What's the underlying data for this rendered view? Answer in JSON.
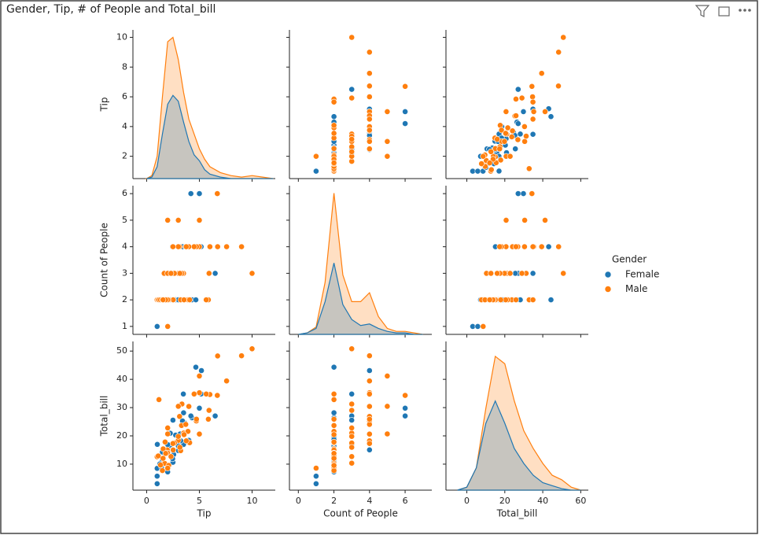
{
  "chart_data": {
    "type": "pairplot",
    "title": "Gender, Tip, # of People and Total_bill",
    "legend_title": "Gender",
    "kde_lim": [
      0,
      1
    ],
    "variables": [
      {
        "name": "Tip",
        "xlim": [
          -1.3,
          12.2
        ],
        "xticks": [
          0,
          5,
          10
        ],
        "ylim": [
          0.5,
          10.5
        ],
        "yticks": [
          2,
          4,
          6,
          8,
          10
        ],
        "kde_x": [
          0,
          0.5,
          1,
          1.5,
          2,
          2.5,
          3,
          3.5,
          4,
          4.5,
          5,
          5.5,
          6,
          7,
          8,
          9,
          10,
          11,
          12
        ]
      },
      {
        "name": "Count of People",
        "xlim": [
          -0.5,
          7.5
        ],
        "xticks": [
          0,
          2,
          4,
          6
        ],
        "ylim": [
          0.7,
          6.3
        ],
        "yticks": [
          1,
          2,
          3,
          4,
          5,
          6
        ],
        "kde_x": [
          0,
          0.5,
          1,
          1.5,
          2,
          2.5,
          3,
          3.5,
          4,
          4.5,
          5,
          5.5,
          6,
          6.5,
          7
        ]
      },
      {
        "name": "Total_bill",
        "xlim": [
          -11,
          64
        ],
        "xticks": [
          0,
          20,
          40,
          60
        ],
        "ylim": [
          0.8,
          53.4
        ],
        "yticks": [
          10,
          20,
          30,
          40,
          50
        ],
        "kde_x": [
          -5,
          0,
          5,
          10,
          15,
          20,
          25,
          30,
          35,
          40,
          45,
          50,
          55,
          60
        ]
      }
    ],
    "series": [
      {
        "name": "Female",
        "color": "#1f77b4",
        "points": [
          [
            1.01,
            2,
            16.99
          ],
          [
            3.61,
            4,
            24.59
          ],
          [
            5.0,
            4,
            35.26
          ],
          [
            3.02,
            2,
            14.78
          ],
          [
            1.67,
            3,
            10.33
          ],
          [
            3.5,
            3,
            16.97
          ],
          [
            2.75,
            2,
            20.29
          ],
          [
            2.23,
            2,
            15.77
          ],
          [
            3.0,
            2,
            19.65
          ],
          [
            2.45,
            4,
            15.06
          ],
          [
            3.18,
            2,
            20.69
          ],
          [
            2.0,
            2,
            16.93
          ],
          [
            4.3,
            2,
            26.41
          ],
          [
            3.0,
            2,
            16.45
          ],
          [
            1.0,
            1,
            3.07
          ],
          [
            2.5,
            2,
            10.65
          ],
          [
            3.23,
            2,
            18.29
          ],
          [
            1.5,
            2,
            11.17
          ],
          [
            1.0,
            1,
            8.52
          ],
          [
            4.0,
            2,
            18.43
          ],
          [
            3.5,
            2,
            28.17
          ],
          [
            6.5,
            3,
            27.05
          ],
          [
            5.2,
            4,
            43.11
          ],
          [
            4.2,
            6,
            27.05
          ],
          [
            5.0,
            6,
            29.8
          ],
          [
            2.0,
            2,
            7.25
          ],
          [
            2.5,
            3,
            25.56
          ],
          [
            1.44,
            2,
            8.51
          ],
          [
            1.25,
            2,
            10.07
          ],
          [
            3.0,
            2,
            18.78
          ],
          [
            4.67,
            2,
            44.3
          ],
          [
            2.56,
            2,
            13.42
          ],
          [
            1.5,
            2,
            14.26
          ],
          [
            3.48,
            3,
            34.81
          ],
          [
            2.0,
            3,
            22.75
          ],
          [
            2.24,
            3,
            20.92
          ],
          [
            5.17,
            4,
            34.83
          ],
          [
            1.0,
            1,
            5.75
          ],
          [
            3.4,
            4,
            25.29
          ],
          [
            2.47,
            2,
            11.87
          ]
        ],
        "kde": [
          [
            0,
            0.01,
            0.08,
            0.3,
            0.5,
            0.56,
            0.52,
            0.38,
            0.25,
            0.16,
            0.12,
            0.06,
            0.03,
            0.01,
            0,
            0,
            0,
            0,
            0
          ],
          [
            0,
            0.01,
            0.04,
            0.22,
            0.48,
            0.2,
            0.1,
            0.06,
            0.07,
            0.04,
            0.02,
            0.01,
            0.01,
            0,
            0
          ],
          [
            0,
            0.02,
            0.15,
            0.45,
            0.6,
            0.45,
            0.28,
            0.18,
            0.1,
            0.05,
            0.03,
            0.01,
            0,
            0
          ]
        ]
      },
      {
        "name": "Male",
        "color": "#ff7f0e",
        "points": [
          [
            1.66,
            3,
            10.34
          ],
          [
            3.5,
            3,
            21.01
          ],
          [
            3.31,
            2,
            23.68
          ],
          [
            4.71,
            4,
            25.29
          ],
          [
            2.0,
            2,
            8.77
          ],
          [
            3.12,
            4,
            26.88
          ],
          [
            1.96,
            2,
            15.04
          ],
          [
            3.23,
            2,
            14.78
          ],
          [
            1.71,
            2,
            10.27
          ],
          [
            5.0,
            4,
            35.26
          ],
          [
            1.57,
            2,
            15.42
          ],
          [
            3.0,
            4,
            18.43
          ],
          [
            3.92,
            2,
            21.58
          ],
          [
            3.71,
            4,
            24.06
          ],
          [
            3.35,
            3,
            31.27
          ],
          [
            4.08,
            2,
            17.59
          ],
          [
            2.52,
            2,
            15.01
          ],
          [
            5.0,
            4,
            20.65
          ],
          [
            6.73,
            4,
            48.27
          ],
          [
            4.0,
            4,
            30.4
          ],
          [
            7.58,
            4,
            39.42
          ],
          [
            9.0,
            4,
            48.33
          ],
          [
            10.0,
            3,
            50.81
          ],
          [
            5.85,
            2,
            25.89
          ],
          [
            6.7,
            6,
            34.3
          ],
          [
            5.0,
            5,
            41.19
          ],
          [
            3.0,
            5,
            30.46
          ],
          [
            2.0,
            5,
            20.69
          ],
          [
            1.0,
            2,
            12.6
          ],
          [
            1.1,
            2,
            12.9
          ],
          [
            1.17,
            2,
            32.83
          ],
          [
            1.32,
            2,
            9.68
          ],
          [
            2.0,
            3,
            22.82
          ],
          [
            3.0,
            3,
            19.82
          ],
          [
            1.5,
            2,
            7.74
          ],
          [
            2.09,
            2,
            9.55
          ],
          [
            4.73,
            4,
            25.89
          ],
          [
            5.92,
            3,
            29.03
          ],
          [
            2.0,
            1,
            8.58
          ],
          [
            3.76,
            4,
            18.24
          ],
          [
            6.0,
            4,
            34.63
          ],
          [
            2.64,
            3,
            17.46
          ],
          [
            3.55,
            2,
            20.45
          ],
          [
            4.5,
            4,
            34.81
          ],
          [
            2.0,
            2,
            13.94
          ],
          [
            1.75,
            2,
            17.82
          ],
          [
            2.31,
            3,
            12.69
          ],
          [
            1.8,
            2,
            13.81
          ],
          [
            5.65,
            2,
            34.81
          ],
          [
            3.15,
            3,
            15.98
          ],
          [
            1.56,
            2,
            12.03
          ],
          [
            2.5,
            4,
            17.31
          ]
        ],
        "kde": [
          [
            0,
            0.02,
            0.15,
            0.55,
            0.92,
            0.95,
            0.8,
            0.58,
            0.4,
            0.3,
            0.2,
            0.13,
            0.08,
            0.04,
            0.02,
            0.01,
            0.02,
            0.01,
            0
          ],
          [
            0,
            0.01,
            0.05,
            0.35,
            0.95,
            0.4,
            0.22,
            0.22,
            0.28,
            0.12,
            0.04,
            0.02,
            0.02,
            0.01,
            0
          ],
          [
            0,
            0.02,
            0.15,
            0.55,
            0.9,
            0.85,
            0.6,
            0.4,
            0.28,
            0.18,
            0.1,
            0.07,
            0.02,
            0
          ]
        ]
      }
    ]
  }
}
